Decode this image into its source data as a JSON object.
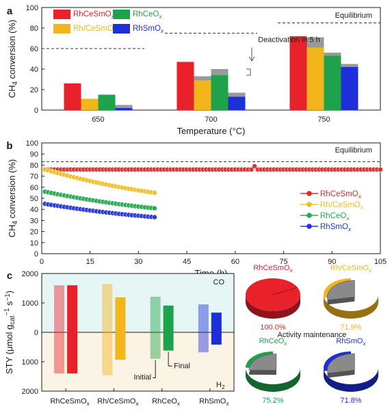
{
  "panels": {
    "a": "a",
    "b": "b",
    "c": "c"
  },
  "chart_data": [
    {
      "panel": "a",
      "type": "bar",
      "categories": [
        "650",
        "700",
        "750"
      ],
      "xlabel": "Temperature (°C)",
      "ylabel": "CH4 conversion (%)",
      "ylabel_main": "CH",
      "ylabel_sub": "4",
      "ylabel_rest": " conversion (%)",
      "ylim": [
        0,
        100
      ],
      "yticks": [
        0,
        20,
        40,
        60,
        80,
        100
      ],
      "series": [
        {
          "name": "RhCeSmOx",
          "base": "RhCeSmO",
          "sub": "x",
          "color": "#e8212b",
          "values": [
            26,
            47,
            72
          ],
          "initial_values": [
            26,
            47,
            72
          ]
        },
        {
          "name": "Rh/CeSmOx",
          "base": "Rh/CeSmO",
          "sub": "x",
          "color": "#f2b51c",
          "values": [
            11,
            29,
            61
          ],
          "initial_values": [
            11,
            33,
            71
          ]
        },
        {
          "name": "RhCeOx",
          "base": "RhCeO",
          "sub": "x",
          "color": "#1fa34a",
          "values": [
            15,
            34,
            53
          ],
          "initial_values": [
            15,
            40,
            56
          ]
        },
        {
          "name": "RhSmOx",
          "base": "RhSmO",
          "sub": "x",
          "color": "#1d2fd9",
          "values": [
            2,
            13,
            42
          ],
          "initial_values": [
            5,
            17,
            45
          ]
        }
      ],
      "initial_color": "#999999",
      "equilibrium": [
        60,
        75,
        85
      ],
      "equilibrium_label": "Equilibrium",
      "annotation": "Deactivation in 5 h",
      "grid": false,
      "legend": "top-left"
    },
    {
      "panel": "b",
      "type": "line",
      "xlabel": "Time (h)",
      "ylabel": "CH4 conversion (%)",
      "ylabel_main": "CH",
      "ylabel_sub": "4",
      "ylabel_rest": " conversion (%)",
      "xlim": [
        0,
        105
      ],
      "ylim": [
        0,
        100
      ],
      "xticks": [
        0,
        15,
        30,
        45,
        60,
        75,
        90,
        105
      ],
      "yticks": [
        0,
        10,
        20,
        30,
        40,
        50,
        60,
        70,
        80,
        90,
        100
      ],
      "equilibrium": 83,
      "equilibrium_label": "Equilibrium",
      "series": [
        {
          "name": "RhCeSmOx",
          "base": "RhCeSmO",
          "sub": "x",
          "color": "#e02a2a",
          "x_start": 1,
          "x_end": 105,
          "y_start": 76,
          "y_end": 76,
          "spike_x": 66,
          "spike_y": 79
        },
        {
          "name": "Rh/CeSmOx",
          "base": "Rh/CeSmO",
          "sub": "x",
          "color": "#f2be22",
          "x_start": 1,
          "x_end": 35,
          "y_start": 76,
          "y_end": 55
        },
        {
          "name": "RhCeOx",
          "base": "RhCeO",
          "sub": "x",
          "color": "#25a84f",
          "x_start": 1,
          "x_end": 35,
          "y_start": 56,
          "y_end": 41
        },
        {
          "name": "RhSmOx",
          "base": "RhSmO",
          "sub": "x",
          "color": "#2335d6",
          "x_start": 1,
          "x_end": 35,
          "y_start": 45,
          "y_end": 33
        }
      ],
      "grid": false,
      "legend": "right"
    },
    {
      "panel": "c",
      "type": "bar",
      "categories": [
        "RhCeSmOx",
        "Rh/CeSmOx",
        "RhCeOx",
        "RhSmOx"
      ],
      "category_labels": [
        {
          "base": "RhCeSmO",
          "sub": "x"
        },
        {
          "base": "Rh/CeSmO",
          "sub": "x"
        },
        {
          "base": "RhCeO",
          "sub": "x"
        },
        {
          "base": "RhSmO",
          "sub": "x"
        }
      ],
      "ylabel": "STY (μmol gcat−1 s−1)",
      "ylim": [
        -2000,
        2000
      ],
      "yticks": [
        2000,
        1000,
        0,
        1000,
        2000
      ],
      "ytick_values": [
        2000,
        1000,
        0,
        -1000,
        -2000
      ],
      "co_label": "CO",
      "h2_label": "H",
      "h2_sub": "2",
      "colors": [
        "#e8212b",
        "#f2b51c",
        "#1fa34a",
        "#1d2fd9"
      ],
      "series": [
        {
          "name": "Initial",
          "co": [
            1600,
            1640,
            1210,
            950
          ],
          "h2": [
            1400,
            1460,
            900,
            680
          ]
        },
        {
          "name": "Final",
          "co": [
            1600,
            1190,
            910,
            670
          ],
          "h2": [
            1400,
            930,
            620,
            420
          ]
        }
      ],
      "annotations": [
        "Initial",
        "Final"
      ]
    },
    {
      "panel": "c-pies",
      "type": "pie",
      "title": "Activity maintenance",
      "items": [
        {
          "base": "RhCeSmO",
          "sub": "x",
          "value": 100.0,
          "label": "100.0%",
          "color": "#e8212b"
        },
        {
          "base": "Rh/CeSmO",
          "sub": "x",
          "value": 71.9,
          "label": "71.9%",
          "color": "#f2b51c"
        },
        {
          "base": "RhCeO",
          "sub": "x",
          "value": 75.2,
          "label": "75.2%",
          "color": "#1fa34a"
        },
        {
          "base": "RhSmO",
          "sub": "x",
          "value": 71.8,
          "label": "71.8%",
          "color": "#1d2fd9"
        }
      ],
      "loss_color": "#8a8a8a"
    }
  ]
}
